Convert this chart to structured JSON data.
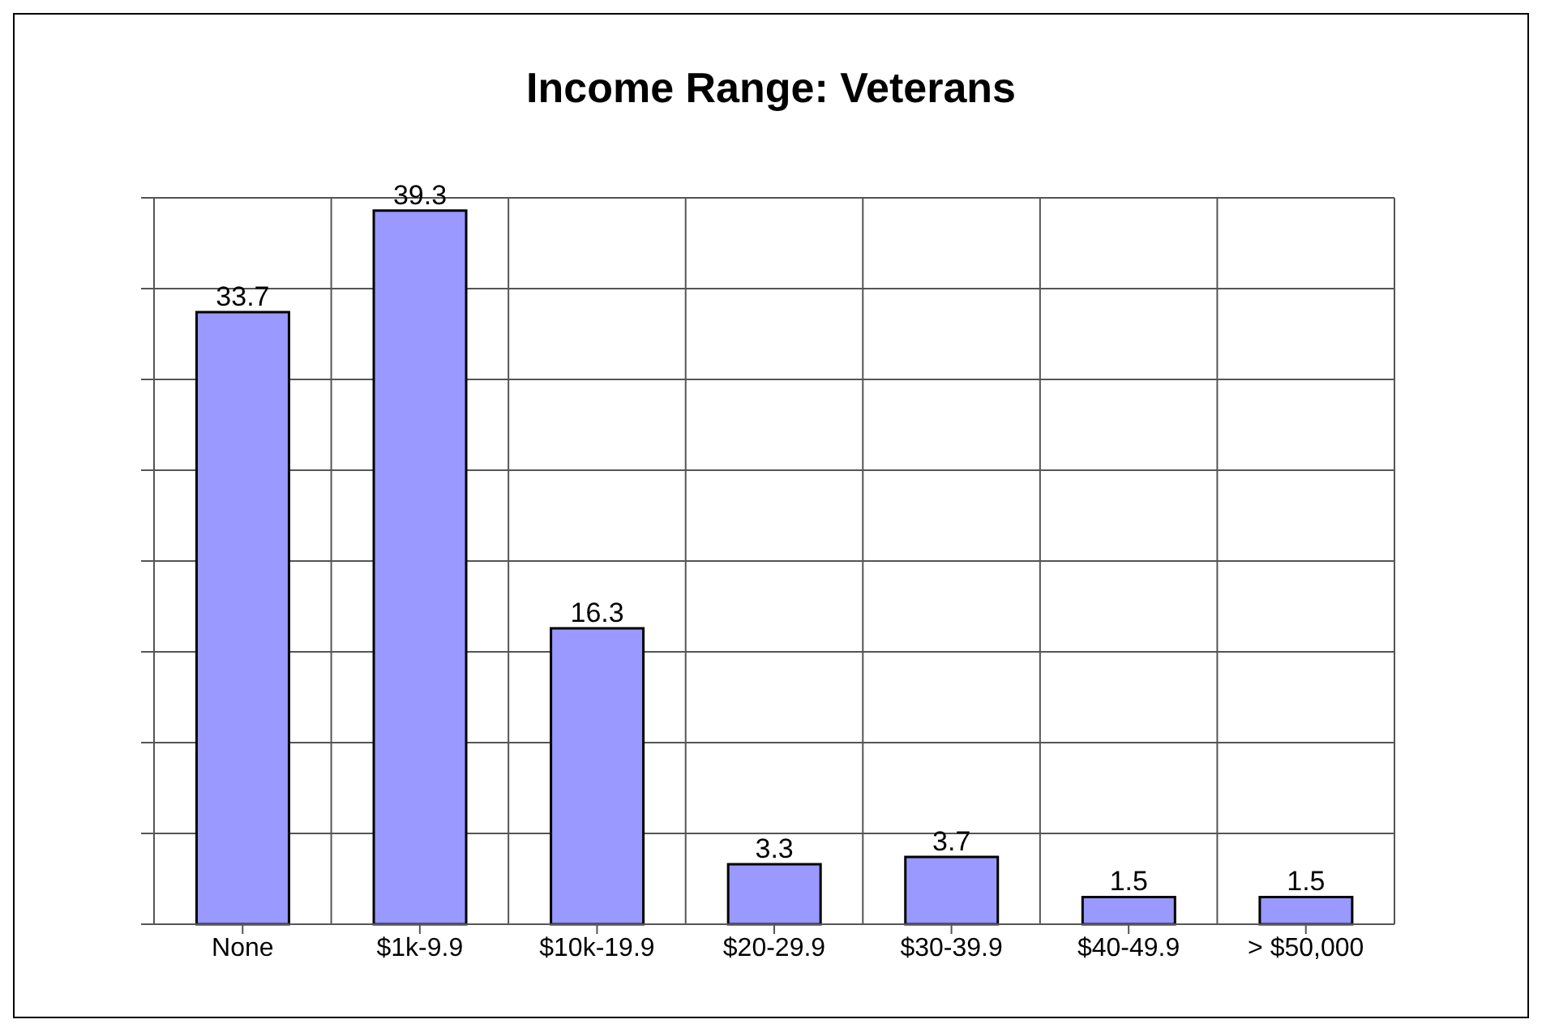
{
  "chart_data": {
    "type": "bar",
    "title": "Income Range: Veterans",
    "categories": [
      "None",
      "$1k-9.9",
      "$10k-19.9",
      "$20-29.9",
      "$30-39.9",
      "$40-49.9",
      "> $50,000"
    ],
    "values": [
      33.7,
      39.3,
      16.3,
      3.3,
      3.7,
      1.5,
      1.5
    ],
    "color": "#9999ff",
    "data_labels": true,
    "tick_labels": "x",
    "grid": true
  }
}
